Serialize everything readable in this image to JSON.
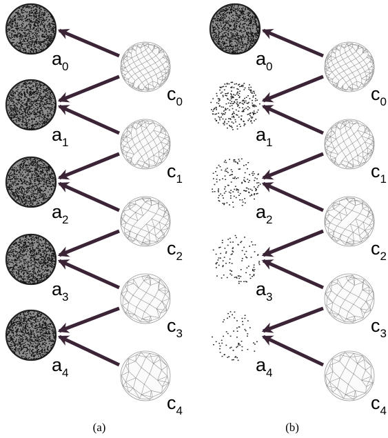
{
  "panels": [
    {
      "caption": "(a)",
      "a_labels": [
        {
          "base": "a",
          "sub": "0"
        },
        {
          "base": "a",
          "sub": "1"
        },
        {
          "base": "a",
          "sub": "2"
        },
        {
          "base": "a",
          "sub": "3"
        },
        {
          "base": "a",
          "sub": "4"
        }
      ],
      "c_labels": [
        {
          "base": "c",
          "sub": "0"
        },
        {
          "base": "c",
          "sub": "1"
        },
        {
          "base": "c",
          "sub": "2"
        },
        {
          "base": "c",
          "sub": "3"
        },
        {
          "base": "c",
          "sub": "4"
        }
      ]
    },
    {
      "caption": "(b)",
      "a_labels": [
        {
          "base": "a",
          "sub": "0"
        },
        {
          "base": "a",
          "sub": "1"
        },
        {
          "base": "a",
          "sub": "2"
        },
        {
          "base": "a",
          "sub": "3"
        },
        {
          "base": "a",
          "sub": "4"
        }
      ],
      "c_labels": [
        {
          "base": "c",
          "sub": "0"
        },
        {
          "base": "c",
          "sub": "1"
        },
        {
          "base": "c",
          "sub": "2"
        },
        {
          "base": "c",
          "sub": "3"
        },
        {
          "base": "c",
          "sub": "4"
        }
      ]
    }
  ],
  "colors": {
    "arrow": "#3a2436",
    "mesh": "#8a8a8a",
    "dense_points": "#111111"
  }
}
